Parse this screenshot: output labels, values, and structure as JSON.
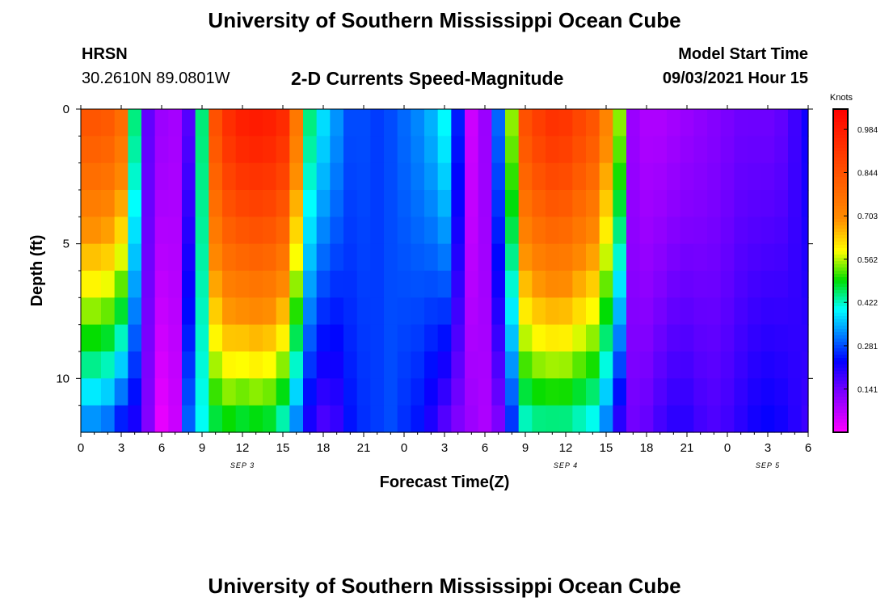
{
  "page": {
    "title": "University of Southern Mississippi Ocean Cube",
    "footer_title": "University of Southern Mississippi Ocean Cube",
    "station": "HRSN",
    "coords": "30.2610N  89.0801W",
    "subtitle": "2-D Currents Speed-Magnitude",
    "model_start_label": "Model Start Time",
    "model_start_value": "09/03/2021 Hour 15"
  },
  "chart_data": {
    "type": "heatmap",
    "title": "2-D Currents Speed-Magnitude",
    "xlabel": "Forecast Time(Z)",
    "ylabel": "Depth (ft)",
    "x_ticks": [
      "0",
      "3",
      "6",
      "9",
      "12",
      "15",
      "18",
      "21",
      "0",
      "3",
      "6",
      "9",
      "12",
      "15",
      "18",
      "21",
      "0",
      "3",
      "6"
    ],
    "x_range_hours": [
      0,
      54
    ],
    "y_ticks": [
      "0",
      "5",
      "10"
    ],
    "y_range_ft": [
      0,
      12
    ],
    "date_labels": [
      {
        "text": "SEP 3",
        "hour": 12
      },
      {
        "text": "SEP 4",
        "hour": 36
      },
      {
        "text": "SEP 5",
        "hour": 51
      }
    ],
    "colorbar": {
      "unit": "Knots",
      "range": [
        0,
        1.05
      ],
      "tick_labels": [
        "0.984",
        "0.844",
        "0.703",
        "0.562",
        "0.422",
        "0.281",
        "0.141"
      ],
      "tick_values": [
        0.984,
        0.844,
        0.703,
        0.562,
        0.422,
        0.281,
        0.141
      ]
    },
    "speed_profiles": {
      "description": "Surface (0 ft) and bottom (12 ft) current speed in knots at each forecast hour; interior depths interpolated.",
      "hours": [
        0,
        1,
        2,
        3,
        4,
        5,
        6,
        7,
        8,
        9,
        10,
        11,
        12,
        13,
        14,
        15,
        16,
        17,
        18,
        19,
        20,
        21,
        22,
        23,
        24,
        25,
        26,
        27,
        28,
        29,
        30,
        31,
        32,
        33,
        34,
        35,
        36,
        37,
        38,
        39,
        40,
        41,
        42,
        43,
        44,
        45,
        46,
        47,
        48,
        49,
        50,
        51,
        52,
        53,
        54
      ],
      "surface": [
        0.84,
        0.84,
        0.83,
        0.78,
        0.45,
        0.15,
        0.1,
        0.09,
        0.16,
        0.45,
        0.85,
        0.94,
        0.98,
        0.99,
        0.98,
        0.95,
        0.75,
        0.45,
        0.38,
        0.33,
        0.28,
        0.28,
        0.27,
        0.28,
        0.3,
        0.32,
        0.35,
        0.4,
        0.25,
        0.05,
        0.1,
        0.3,
        0.55,
        0.85,
        0.9,
        0.93,
        0.92,
        0.88,
        0.84,
        0.72,
        0.55,
        0.1,
        0.08,
        0.08,
        0.09,
        0.1,
        0.11,
        0.12,
        0.13,
        0.14,
        0.14,
        0.14,
        0.15,
        0.18,
        0.22
      ],
      "bottom": [
        0.3,
        0.3,
        0.28,
        0.22,
        0.2,
        0.12,
        0.02,
        0.05,
        0.3,
        0.4,
        0.45,
        0.47,
        0.45,
        0.46,
        0.45,
        0.4,
        0.3,
        0.2,
        0.16,
        0.18,
        0.24,
        0.26,
        0.27,
        0.28,
        0.26,
        0.24,
        0.2,
        0.15,
        0.12,
        0.1,
        0.08,
        0.12,
        0.25,
        0.4,
        0.42,
        0.42,
        0.42,
        0.4,
        0.38,
        0.3,
        0.18,
        0.14,
        0.15,
        0.18,
        0.2,
        0.2,
        0.18,
        0.17,
        0.18,
        0.2,
        0.22,
        0.23,
        0.22,
        0.2,
        0.18
      ]
    }
  }
}
